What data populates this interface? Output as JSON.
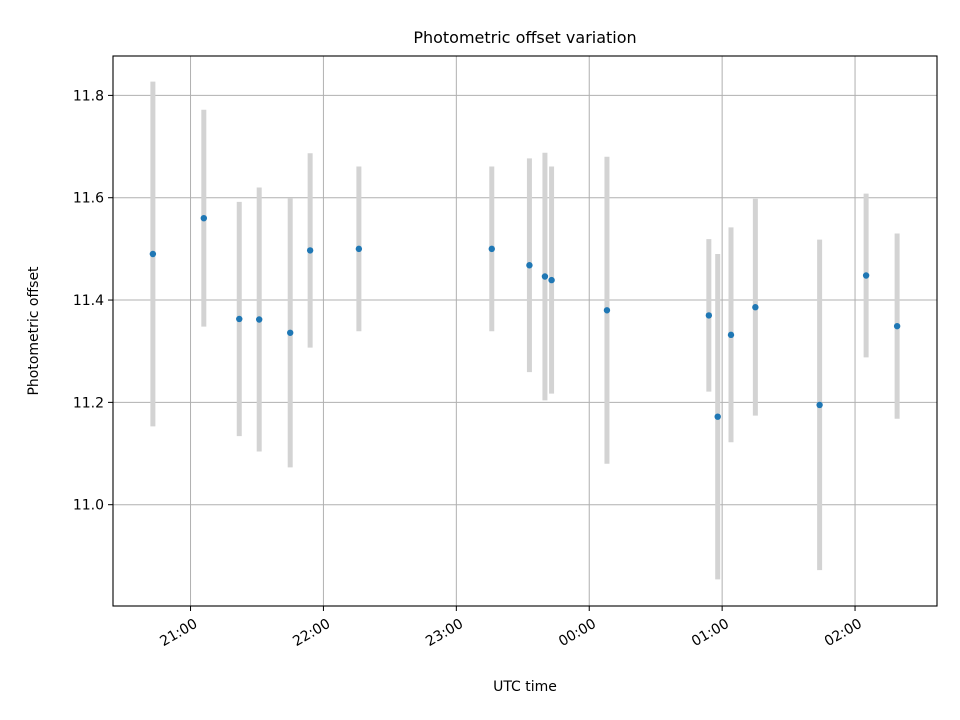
{
  "chart_data": {
    "type": "scatter",
    "title": "Photometric offset variation",
    "xlabel": "UTC time",
    "ylabel": "Photometric offset",
    "x_tick_labels": [
      "21:00",
      "22:00",
      "23:00",
      "00:00",
      "01:00",
      "02:00"
    ],
    "x_tick_values": [
      "21:00",
      "22:00",
      "23:00",
      "00:00",
      "01:00",
      "02:00"
    ],
    "xlim": [
      "20:25",
      "02:37"
    ],
    "y_tick_labels": [
      "11.0",
      "11.2",
      "11.4",
      "11.6",
      "11.8"
    ],
    "y_tick_values": [
      11.0,
      11.2,
      11.4,
      11.6,
      11.8
    ],
    "ylim": [
      10.802,
      11.877
    ],
    "grid": true,
    "legend": "none",
    "marker_color": "#1f77b4",
    "errorbar_color": "#d3d3d3",
    "points": [
      {
        "time": "20:43",
        "value": 11.49,
        "error": 0.337
      },
      {
        "time": "21:06",
        "value": 11.56,
        "error": 0.212
      },
      {
        "time": "21:22",
        "value": 11.363,
        "error": 0.229
      },
      {
        "time": "21:31",
        "value": 11.362,
        "error": 0.258
      },
      {
        "time": "21:45",
        "value": 11.336,
        "error": 0.263
      },
      {
        "time": "21:54",
        "value": 11.497,
        "error": 0.19
      },
      {
        "time": "22:16",
        "value": 11.5,
        "error": 0.161
      },
      {
        "time": "23:16",
        "value": 11.5,
        "error": 0.161
      },
      {
        "time": "23:33",
        "value": 11.468,
        "error": 0.209
      },
      {
        "time": "23:40",
        "value": 11.446,
        "error": 0.242
      },
      {
        "time": "23:43",
        "value": 11.439,
        "error": 0.222
      },
      {
        "time": "00:08",
        "value": 11.38,
        "error": 0.3
      },
      {
        "time": "00:54",
        "value": 11.37,
        "error": 0.149
      },
      {
        "time": "00:58",
        "value": 11.172,
        "error": 0.318
      },
      {
        "time": "01:04",
        "value": 11.332,
        "error": 0.21
      },
      {
        "time": "01:15",
        "value": 11.386,
        "error": 0.212
      },
      {
        "time": "01:44",
        "value": 11.195,
        "error": 0.323
      },
      {
        "time": "02:05",
        "value": 11.448,
        "error": 0.16
      },
      {
        "time": "02:19",
        "value": 11.349,
        "error": 0.181
      }
    ]
  }
}
